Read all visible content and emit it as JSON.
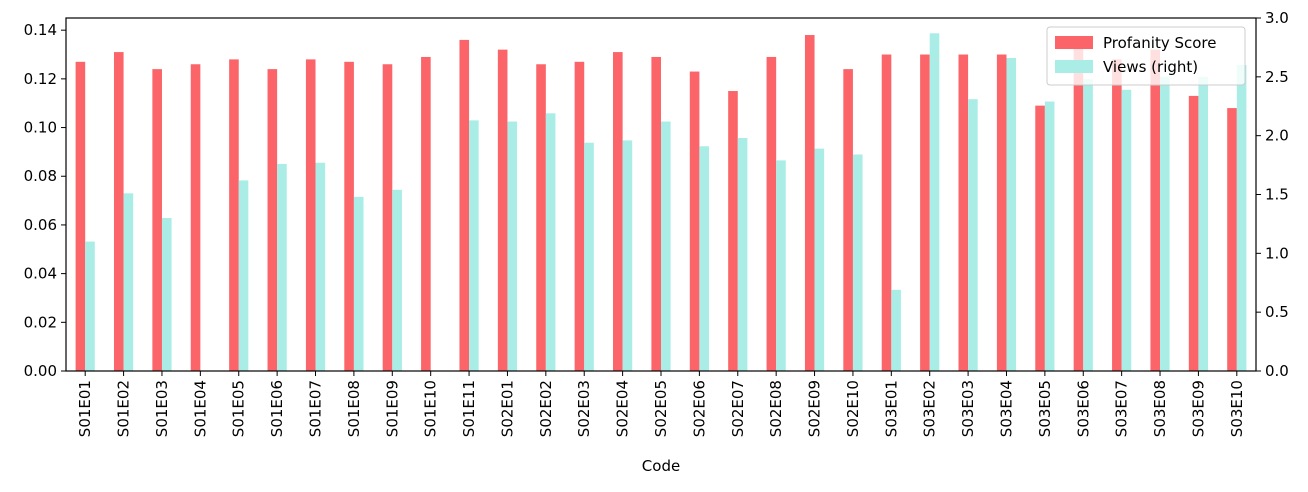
{
  "chart_data": {
    "type": "bar",
    "title": "",
    "xlabel": "Code",
    "ylabel": "",
    "ylabel_right": "",
    "categories": [
      "S01E01",
      "S01E02",
      "S01E03",
      "S01E04",
      "S01E05",
      "S01E06",
      "S01E07",
      "S01E08",
      "S01E09",
      "S01E10",
      "S01E11",
      "S02E01",
      "S02E02",
      "S02E03",
      "S02E04",
      "S02E05",
      "S02E06",
      "S02E07",
      "S02E08",
      "S02E09",
      "S02E10",
      "S03E01",
      "S03E02",
      "S03E03",
      "S03E04",
      "S03E05",
      "S03E06",
      "S03E07",
      "S03E08",
      "S03E09",
      "S03E10"
    ],
    "series": [
      {
        "name": "Profanity Score",
        "axis": "left",
        "color": "#fb6468",
        "values": [
          0.127,
          0.131,
          0.124,
          0.126,
          0.128,
          0.124,
          0.128,
          0.127,
          0.126,
          0.129,
          0.136,
          0.132,
          0.126,
          0.127,
          0.131,
          0.129,
          0.123,
          0.115,
          0.129,
          0.138,
          0.124,
          0.13,
          0.13,
          0.13,
          0.13,
          0.109,
          0.134,
          0.128,
          0.132,
          0.113,
          0.108
        ]
      },
      {
        "name": "Views (right)",
        "axis": "right",
        "color": "#a9ede6",
        "values": [
          1.1,
          1.51,
          1.3,
          null,
          1.62,
          1.76,
          1.77,
          1.48,
          1.54,
          null,
          2.13,
          2.12,
          2.19,
          1.94,
          1.96,
          2.12,
          1.91,
          1.98,
          1.79,
          1.89,
          1.84,
          0.69,
          2.87,
          2.31,
          2.66,
          2.29,
          2.48,
          2.39,
          2.5,
          2.5,
          2.6
        ]
      }
    ],
    "ylim": [
      0,
      0.145
    ],
    "ylim_right": [
      0,
      3.0
    ],
    "yticks": [
      "0.00",
      "0.02",
      "0.04",
      "0.06",
      "0.08",
      "0.10",
      "0.12",
      "0.14"
    ],
    "yticks_right": [
      "0.0",
      "0.5",
      "1.0",
      "1.5",
      "2.0",
      "2.5",
      "3.0"
    ],
    "grid": false,
    "legend_position": "top-right"
  }
}
